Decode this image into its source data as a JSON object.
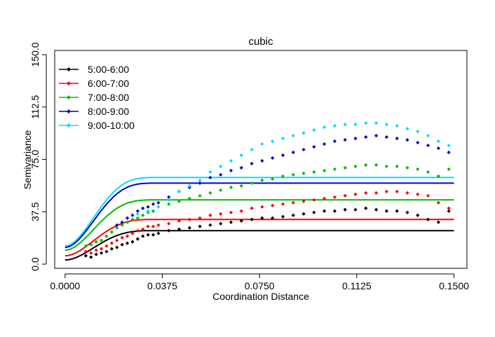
{
  "chart_data": {
    "type": "scatter",
    "title": "cubic",
    "xlabel": "Coordination Distance",
    "ylabel": "Semivariance",
    "xlim": [
      -0.004,
      0.155
    ],
    "ylim": [
      -3,
      153
    ],
    "xticks": [
      "0.0000",
      "0.0375",
      "0.0750",
      "0.1125",
      "0.1500"
    ],
    "xtick_values": [
      0.0,
      0.0375,
      0.075,
      0.1125,
      0.15
    ],
    "yticks": [
      "0.0",
      "37.5",
      "75.0",
      "112.5",
      "150.0"
    ],
    "ytick_values": [
      0.0,
      37.5,
      75.0,
      112.5,
      150.0
    ],
    "legend_position": "top-left",
    "model": "cubic",
    "series": [
      {
        "name": "5:00-6:00",
        "color": "#000000",
        "nugget": 3,
        "sill": 24,
        "range": 0.036,
        "points": [
          [
            0.008,
            6
          ],
          [
            0.01,
            5
          ],
          [
            0.012,
            7
          ],
          [
            0.014,
            8
          ],
          [
            0.016,
            9
          ],
          [
            0.018,
            11
          ],
          [
            0.02,
            12
          ],
          [
            0.022,
            14
          ],
          [
            0.024,
            15
          ],
          [
            0.026,
            16
          ],
          [
            0.028,
            18
          ],
          [
            0.03,
            20
          ],
          [
            0.032,
            21
          ],
          [
            0.034,
            21
          ],
          [
            0.036,
            22
          ],
          [
            0.04,
            24
          ],
          [
            0.044,
            25
          ],
          [
            0.048,
            26
          ],
          [
            0.052,
            27
          ],
          [
            0.056,
            28
          ],
          [
            0.06,
            29
          ],
          [
            0.064,
            30
          ],
          [
            0.068,
            31
          ],
          [
            0.072,
            32
          ],
          [
            0.076,
            33
          ],
          [
            0.08,
            33
          ],
          [
            0.084,
            34
          ],
          [
            0.088,
            35
          ],
          [
            0.092,
            36
          ],
          [
            0.096,
            37
          ],
          [
            0.1,
            38
          ],
          [
            0.104,
            38
          ],
          [
            0.108,
            39
          ],
          [
            0.112,
            39
          ],
          [
            0.116,
            40
          ],
          [
            0.12,
            39
          ],
          [
            0.124,
            38
          ],
          [
            0.128,
            38
          ],
          [
            0.132,
            37
          ],
          [
            0.136,
            35
          ],
          [
            0.14,
            32
          ],
          [
            0.144,
            30
          ],
          [
            0.148,
            38
          ]
        ]
      },
      {
        "name": "6:00-7:00",
        "color": "#ff0000",
        "nugget": 6,
        "sill": 32,
        "range": 0.036,
        "points": [
          [
            0.008,
            9
          ],
          [
            0.01,
            8
          ],
          [
            0.012,
            10
          ],
          [
            0.014,
            11
          ],
          [
            0.016,
            13
          ],
          [
            0.018,
            15
          ],
          [
            0.02,
            17
          ],
          [
            0.022,
            19
          ],
          [
            0.024,
            20
          ],
          [
            0.026,
            22
          ],
          [
            0.028,
            24
          ],
          [
            0.03,
            25
          ],
          [
            0.032,
            27
          ],
          [
            0.034,
            27
          ],
          [
            0.036,
            28
          ],
          [
            0.04,
            29
          ],
          [
            0.044,
            31
          ],
          [
            0.048,
            32
          ],
          [
            0.052,
            33
          ],
          [
            0.056,
            35
          ],
          [
            0.06,
            36
          ],
          [
            0.064,
            37
          ],
          [
            0.068,
            38
          ],
          [
            0.072,
            40
          ],
          [
            0.076,
            41
          ],
          [
            0.08,
            42
          ],
          [
            0.084,
            43
          ],
          [
            0.088,
            44
          ],
          [
            0.092,
            45
          ],
          [
            0.096,
            46
          ],
          [
            0.1,
            47
          ],
          [
            0.104,
            48
          ],
          [
            0.108,
            49
          ],
          [
            0.112,
            50
          ],
          [
            0.116,
            51
          ],
          [
            0.12,
            51
          ],
          [
            0.124,
            52
          ],
          [
            0.128,
            52
          ],
          [
            0.132,
            51
          ],
          [
            0.136,
            50
          ],
          [
            0.14,
            49
          ],
          [
            0.144,
            44
          ],
          [
            0.148,
            40
          ]
        ]
      },
      {
        "name": "7:00-8:00",
        "color": "#00bb00",
        "nugget": 10,
        "sill": 46,
        "range": 0.036,
        "points": [
          [
            0.008,
            13
          ],
          [
            0.01,
            14
          ],
          [
            0.012,
            16
          ],
          [
            0.014,
            17
          ],
          [
            0.016,
            20
          ],
          [
            0.018,
            23
          ],
          [
            0.02,
            26
          ],
          [
            0.022,
            28
          ],
          [
            0.024,
            30
          ],
          [
            0.026,
            32
          ],
          [
            0.028,
            33
          ],
          [
            0.03,
            35
          ],
          [
            0.032,
            37
          ],
          [
            0.034,
            38
          ],
          [
            0.036,
            41
          ],
          [
            0.04,
            43
          ],
          [
            0.044,
            45
          ],
          [
            0.048,
            47
          ],
          [
            0.052,
            49
          ],
          [
            0.056,
            51
          ],
          [
            0.06,
            53
          ],
          [
            0.064,
            55
          ],
          [
            0.068,
            56
          ],
          [
            0.072,
            58
          ],
          [
            0.076,
            60
          ],
          [
            0.08,
            61
          ],
          [
            0.084,
            63
          ],
          [
            0.088,
            64
          ],
          [
            0.092,
            65
          ],
          [
            0.096,
            66
          ],
          [
            0.1,
            67
          ],
          [
            0.104,
            68
          ],
          [
            0.108,
            69
          ],
          [
            0.112,
            70
          ],
          [
            0.116,
            71
          ],
          [
            0.12,
            71
          ],
          [
            0.124,
            70
          ],
          [
            0.128,
            70
          ],
          [
            0.132,
            69
          ],
          [
            0.136,
            68
          ],
          [
            0.14,
            66
          ],
          [
            0.144,
            63
          ],
          [
            0.148,
            68
          ]
        ]
      },
      {
        "name": "8:00-9:00",
        "color": "#0000cc",
        "nugget": 12,
        "sill": 58,
        "range": 0.036,
        "points": [
          [
            0.02,
            28
          ],
          [
            0.022,
            30
          ],
          [
            0.024,
            33
          ],
          [
            0.026,
            35
          ],
          [
            0.028,
            38
          ],
          [
            0.03,
            40
          ],
          [
            0.032,
            41
          ],
          [
            0.034,
            43
          ],
          [
            0.036,
            44
          ],
          [
            0.04,
            48
          ],
          [
            0.044,
            52
          ],
          [
            0.048,
            55
          ],
          [
            0.052,
            58
          ],
          [
            0.056,
            62
          ],
          [
            0.06,
            64
          ],
          [
            0.064,
            67
          ],
          [
            0.068,
            69
          ],
          [
            0.072,
            72
          ],
          [
            0.076,
            74
          ],
          [
            0.08,
            76
          ],
          [
            0.084,
            78
          ],
          [
            0.088,
            80
          ],
          [
            0.092,
            82
          ],
          [
            0.096,
            84
          ],
          [
            0.1,
            86
          ],
          [
            0.104,
            88
          ],
          [
            0.108,
            89
          ],
          [
            0.112,
            90
          ],
          [
            0.116,
            91
          ],
          [
            0.12,
            92
          ],
          [
            0.124,
            91
          ],
          [
            0.128,
            90
          ],
          [
            0.132,
            89
          ],
          [
            0.136,
            87
          ],
          [
            0.14,
            85
          ],
          [
            0.144,
            83
          ],
          [
            0.148,
            80
          ]
        ]
      },
      {
        "name": "9:00-10:00",
        "color": "#00ddff",
        "nugget": 13,
        "sill": 62,
        "range": 0.036,
        "points": [
          [
            0.028,
            36
          ],
          [
            0.032,
            38
          ],
          [
            0.036,
            41
          ],
          [
            0.04,
            46
          ],
          [
            0.044,
            52
          ],
          [
            0.048,
            56
          ],
          [
            0.052,
            60
          ],
          [
            0.056,
            66
          ],
          [
            0.06,
            70
          ],
          [
            0.064,
            74
          ],
          [
            0.068,
            78
          ],
          [
            0.072,
            82
          ],
          [
            0.076,
            86
          ],
          [
            0.08,
            88
          ],
          [
            0.084,
            90
          ],
          [
            0.088,
            92
          ],
          [
            0.092,
            94
          ],
          [
            0.096,
            96
          ],
          [
            0.1,
            98
          ],
          [
            0.104,
            99
          ],
          [
            0.108,
            100
          ],
          [
            0.112,
            100
          ],
          [
            0.116,
            101
          ],
          [
            0.12,
            101
          ],
          [
            0.124,
            100
          ],
          [
            0.128,
            99
          ],
          [
            0.132,
            97
          ],
          [
            0.136,
            95
          ],
          [
            0.14,
            92
          ],
          [
            0.144,
            88
          ],
          [
            0.148,
            85
          ]
        ]
      }
    ]
  }
}
